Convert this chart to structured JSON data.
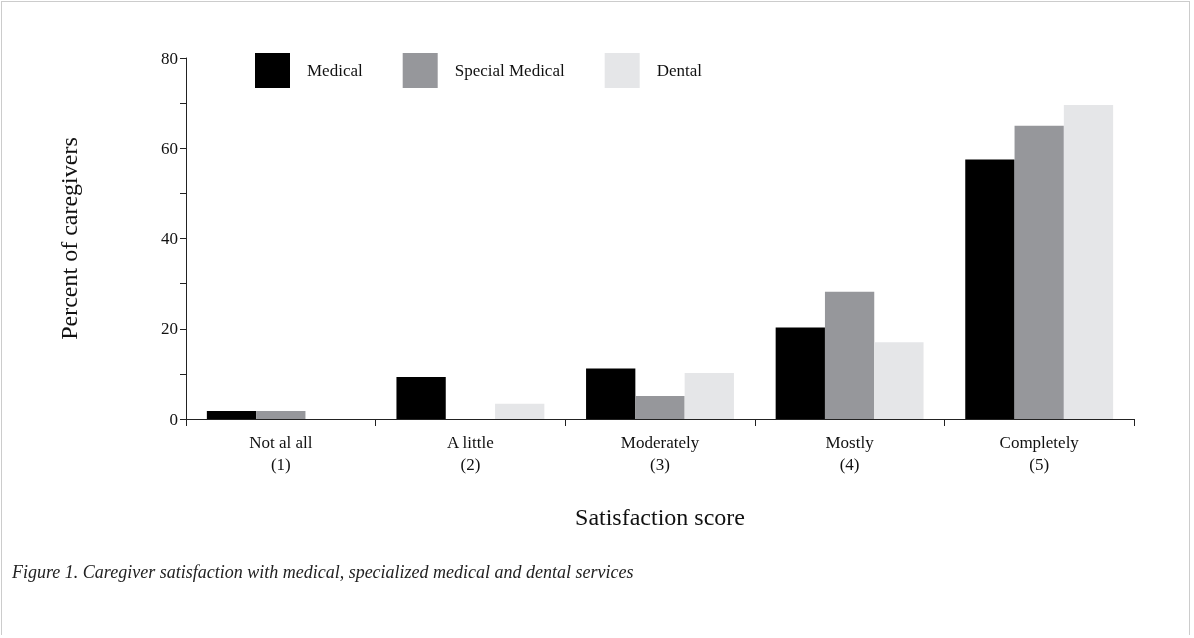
{
  "chart_data": {
    "type": "bar",
    "xlabel": "Satisfaction score",
    "ylabel": "Percent of caregivers",
    "categories": [
      "Not al all\n(1)",
      "A little\n(2)",
      "Moderately\n(3)",
      "Mostly\n(4)",
      "Completely\n(5)"
    ],
    "series": [
      {
        "name": "Medical",
        "color": "#000000",
        "values": [
          1.8,
          9.3,
          11.2,
          20.3,
          57.5
        ]
      },
      {
        "name": "Special Medical",
        "color": "#96979b",
        "values": [
          1.8,
          0,
          5.1,
          28.2,
          65.0
        ]
      },
      {
        "name": "Dental",
        "color": "#e5e6e8",
        "values": [
          0,
          3.4,
          10.2,
          17.0,
          69.6
        ]
      }
    ],
    "ylim": [
      0,
      80
    ],
    "yticks": [
      0,
      {
        "value": 10,
        "label": null
      },
      20,
      {
        "value": 30,
        "label": null
      },
      40,
      {
        "value": 50,
        "label": null
      },
      60,
      {
        "value": 70,
        "label": null
      },
      80
    ],
    "grid": false,
    "legend": "top",
    "annotations": [
      "Figure 1. Caregiver satisfaction with medical, specialized medical and dental services"
    ]
  }
}
